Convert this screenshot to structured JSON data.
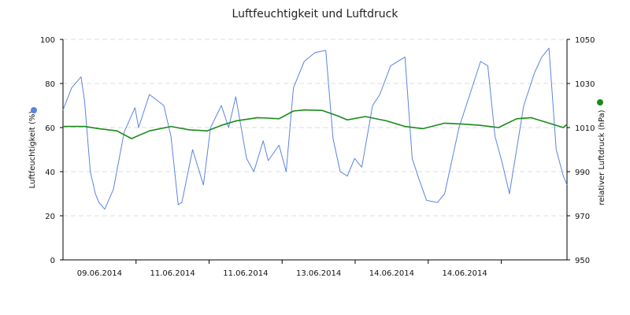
{
  "chart_data": {
    "type": "line",
    "title": "Luftfeuchtigkeit und Luftdruck",
    "x_ticks": [
      "09.06.2014",
      "11.06.2014",
      "11.06.2014",
      "13.06.2014",
      "14.06.2014",
      "14.06.2014"
    ],
    "x_domain": [
      0,
      7
    ],
    "x_note": "x values are in days relative to the start of the plotted range; tick labels are printed as shown on the chart",
    "y_left": {
      "label": "Luftfeuchtigkeit (%)",
      "ylim": [
        0,
        100
      ],
      "ticks": [
        0,
        20,
        40,
        60,
        80,
        100
      ]
    },
    "y_right": {
      "label": "relativer Luftdruck (hPa)",
      "ylim": [
        950,
        1050
      ],
      "ticks": [
        950,
        970,
        990,
        1010,
        1030,
        1050
      ]
    },
    "grid": true,
    "series": [
      {
        "axis": "left",
        "color": "#5b84e0",
        "marker_color": "#5b84e0",
        "x": [
          0.0,
          0.12,
          0.25,
          0.3,
          0.38,
          0.45,
          0.5,
          0.58,
          0.7,
          0.85,
          1.0,
          1.05,
          1.2,
          1.4,
          1.5,
          1.6,
          1.65,
          1.8,
          1.95,
          2.05,
          2.2,
          2.3,
          2.4,
          2.55,
          2.65,
          2.78,
          2.85,
          3.0,
          3.1,
          3.2,
          3.35,
          3.5,
          3.65,
          3.75,
          3.85,
          3.95,
          4.05,
          4.15,
          4.3,
          4.4,
          4.55,
          4.75,
          4.85,
          4.95,
          5.05,
          5.2,
          5.3,
          5.5,
          5.65,
          5.8,
          5.9,
          6.0,
          6.1,
          6.2,
          6.4,
          6.55,
          6.65,
          6.75,
          6.85,
          6.95,
          7.0
        ],
        "y": [
          68,
          78,
          83,
          72,
          40,
          30,
          26,
          23,
          32,
          58,
          69,
          60,
          75,
          70,
          56,
          25,
          26,
          50,
          34,
          60,
          70,
          60,
          74,
          46,
          40,
          54,
          45,
          52,
          40,
          78,
          90,
          94,
          95,
          55,
          40,
          38,
          46,
          42,
          70,
          75,
          88,
          92,
          46,
          36,
          27,
          26,
          30,
          60,
          75,
          90,
          88,
          56,
          44,
          30,
          70,
          85,
          92,
          96,
          50,
          38,
          34
        ]
      },
      {
        "axis": "right",
        "color": "#1a8a1a",
        "marker_color": "#1a8a1a",
        "x": [
          0.0,
          0.3,
          0.5,
          0.75,
          0.95,
          1.2,
          1.5,
          1.75,
          2.0,
          2.2,
          2.4,
          2.7,
          2.85,
          3.0,
          3.2,
          3.35,
          3.6,
          3.8,
          3.95,
          4.2,
          4.5,
          4.75,
          5.0,
          5.3,
          5.6,
          5.8,
          6.05,
          6.3,
          6.5,
          6.75,
          6.95,
          7.0
        ],
        "y": [
          1010.5,
          1010.5,
          1009.5,
          1008.5,
          1005.0,
          1008.5,
          1010.5,
          1009.0,
          1008.5,
          1011.0,
          1013.0,
          1014.5,
          1014.3,
          1014.0,
          1017.5,
          1018.0,
          1017.8,
          1015.5,
          1013.5,
          1015.0,
          1013.0,
          1010.5,
          1009.5,
          1012.0,
          1011.5,
          1011.0,
          1010.0,
          1014.0,
          1014.5,
          1012.0,
          1010.0,
          1011.5
        ]
      }
    ]
  }
}
